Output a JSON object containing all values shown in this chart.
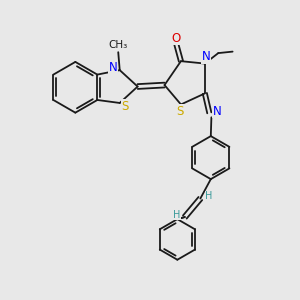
{
  "bg_color": "#e8e8e8",
  "bond_color": "#1a1a1a",
  "n_color": "#0000ff",
  "s_color": "#ccaa00",
  "o_color": "#dd0000",
  "h_color": "#3a9a9a",
  "font_size": 8.5,
  "lw": 1.3,
  "xlim": [
    0,
    10
  ],
  "ylim": [
    0,
    10
  ]
}
